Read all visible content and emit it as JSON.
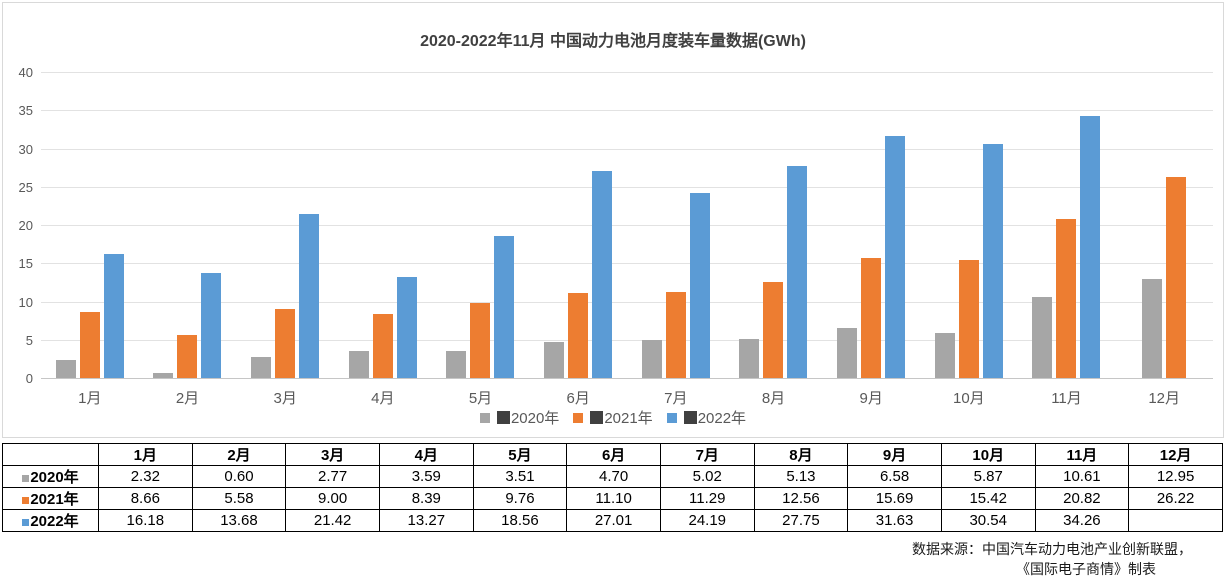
{
  "chart_data": {
    "type": "bar",
    "title": "2020-2022年11月 中国动力电池月度装车量数据(GWh)",
    "categories": [
      "1月",
      "2月",
      "3月",
      "4月",
      "5月",
      "6月",
      "7月",
      "8月",
      "9月",
      "10月",
      "11月",
      "12月"
    ],
    "series": [
      {
        "name": "2020年",
        "color": "#a6a6a6",
        "values": [
          2.32,
          0.6,
          2.77,
          3.59,
          3.51,
          4.7,
          5.02,
          5.13,
          6.58,
          5.87,
          10.61,
          12.95
        ]
      },
      {
        "name": "2021年",
        "color": "#ed7d31",
        "values": [
          8.66,
          5.58,
          9.0,
          8.39,
          9.76,
          11.1,
          11.29,
          12.56,
          15.69,
          15.42,
          20.82,
          26.22
        ]
      },
      {
        "name": "2022年",
        "color": "#5b9bd5",
        "values": [
          16.18,
          13.68,
          21.42,
          13.27,
          18.56,
          27.01,
          24.19,
          27.75,
          31.63,
          30.54,
          34.26,
          null
        ]
      }
    ],
    "xlabel": "",
    "ylabel": "",
    "ylim": [
      0,
      40
    ],
    "yticks": [
      0,
      5,
      10,
      15,
      20,
      25,
      30,
      35,
      40
    ],
    "grid": true,
    "legend_position": "bottom",
    "legend_dark_marker_color": "#404040",
    "colors": {
      "axis_text": "#595959",
      "gridline": "#e2e2e2",
      "title_text": "#404040",
      "chart_border": "#d9d9d9"
    }
  },
  "table": {
    "headers": [
      "",
      "1月",
      "2月",
      "3月",
      "4月",
      "5月",
      "6月",
      "7月",
      "8月",
      "9月",
      "10月",
      "11月",
      "12月"
    ],
    "rows": [
      {
        "label": "2020年",
        "marker_color": "#a6a6a6",
        "values": [
          "2.32",
          "0.60",
          "2.77",
          "3.59",
          "3.51",
          "4.70",
          "5.02",
          "5.13",
          "6.58",
          "5.87",
          "10.61",
          "12.95"
        ]
      },
      {
        "label": "2021年",
        "marker_color": "#ed7d31",
        "values": [
          "8.66",
          "5.58",
          "9.00",
          "8.39",
          "9.76",
          "11.10",
          "11.29",
          "12.56",
          "15.69",
          "15.42",
          "20.82",
          "26.22"
        ]
      },
      {
        "label": "2022年",
        "marker_color": "#5b9bd5",
        "values": [
          "16.18",
          "13.68",
          "21.42",
          "13.27",
          "18.56",
          "27.01",
          "24.19",
          "27.75",
          "31.63",
          "30.54",
          "34.26",
          ""
        ]
      }
    ]
  },
  "source": {
    "line1": "数据来源：中国汽车动力电池产业创新联盟，",
    "line2": "《国际电子商情》制表"
  }
}
